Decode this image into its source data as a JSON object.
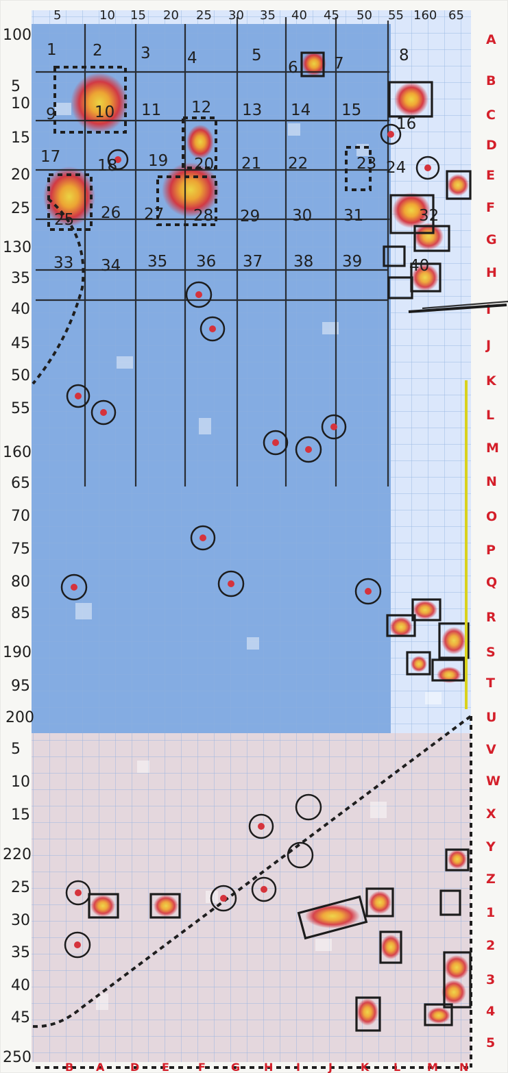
{
  "left_labels": [
    "100",
    "5",
    "10",
    "15",
    "20",
    "25",
    "130",
    "35",
    "40",
    "45",
    "50",
    "55",
    "160",
    "65",
    "70",
    "75",
    "80",
    "85",
    "190",
    "95",
    "200",
    "5",
    "10",
    "15",
    "220",
    "25",
    "30",
    "35",
    "40",
    "45",
    "250"
  ],
  "top_labels": [
    "5",
    "10",
    "15",
    "20",
    "25",
    "30",
    "35",
    "40",
    "45",
    "50",
    "55",
    "160",
    "65"
  ],
  "right_labels": [
    "A",
    "B",
    "C",
    "D",
    "E",
    "F",
    "G",
    "H",
    "I",
    "J",
    "K",
    "L",
    "M",
    "N",
    "O",
    "P",
    "Q",
    "R",
    "S",
    "T",
    "U",
    "V",
    "W",
    "X",
    "Y",
    "Z",
    "1",
    "2",
    "3",
    "4",
    "5"
  ],
  "bottom_labels": [
    "B",
    "A",
    "D",
    "E",
    "F",
    "G",
    "H",
    "I",
    "J",
    "K",
    "L",
    "M",
    "N"
  ],
  "cell_numbers": [
    "1",
    "2",
    "3",
    "4",
    "5",
    "6",
    "7",
    "8",
    "9",
    "10",
    "11",
    "12",
    "13",
    "14",
    "15",
    "16",
    "17",
    "18",
    "19",
    "20",
    "21",
    "22",
    "23",
    "24",
    "25",
    "26",
    "27",
    "28",
    "29",
    "30",
    "31",
    "32",
    "33",
    "34",
    "35",
    "36",
    "37",
    "38",
    "39",
    "40"
  ],
  "colors": {
    "blue": "#6f9bd6",
    "blue_light": "#b8cff0",
    "grid": "#8fb0df",
    "red": "#d5333c",
    "yellow": "#f0d53b",
    "ink": "#202020",
    "label_red": "#d41f2a",
    "yellow_line": "#d9d21d"
  }
}
